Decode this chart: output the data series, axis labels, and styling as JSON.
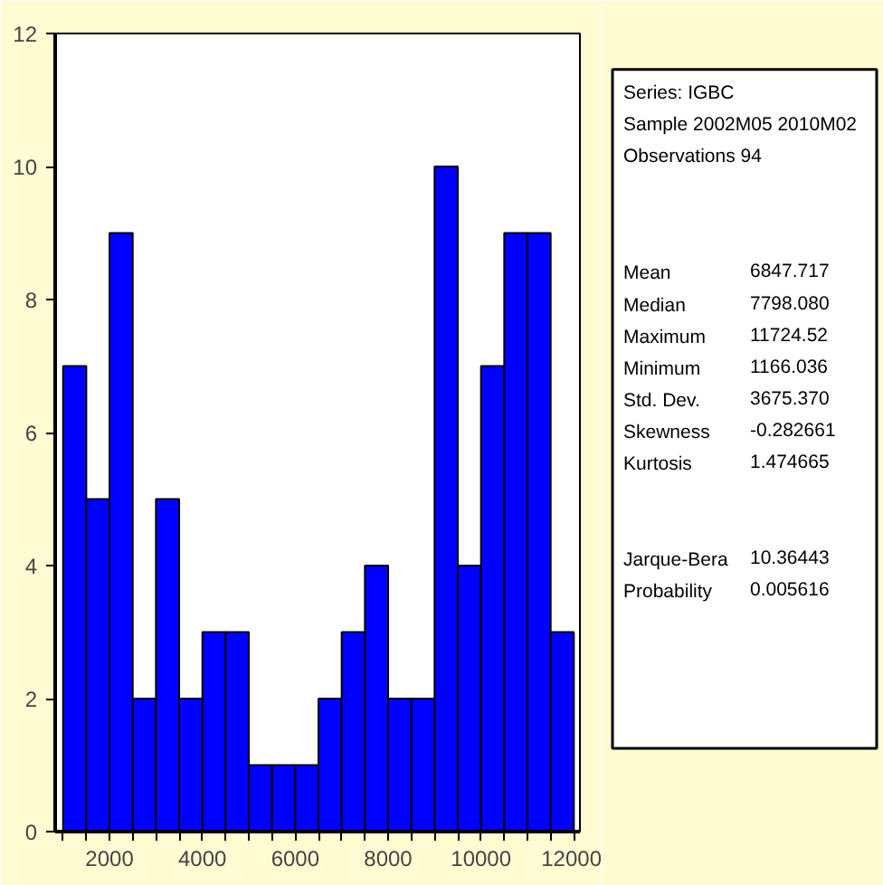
{
  "chart_data": [
    {
      "type": "histogram",
      "bins": [
        1000,
        1500,
        2000,
        2500,
        3000,
        3500,
        4000,
        4500,
        5000,
        5500,
        6000,
        6500,
        7000,
        7500,
        8000,
        8500,
        9000,
        9500,
        10000,
        10500,
        11000,
        11500,
        12000
      ],
      "values": [
        7,
        5,
        9,
        2,
        5,
        2,
        3,
        3,
        1,
        1,
        1,
        2,
        3,
        4,
        2,
        2,
        10,
        4,
        7,
        9,
        9,
        3
      ],
      "color": "#0000ff",
      "xlim": [
        830,
        12130
      ],
      "ylim": [
        0,
        12
      ],
      "xticks": [
        {
          "value": 1000,
          "label": null
        },
        {
          "value": 1500,
          "label": null
        },
        2000,
        {
          "value": 2500,
          "label": null
        },
        {
          "value": 3000,
          "label": null
        },
        {
          "value": 3500,
          "label": null
        },
        4000,
        {
          "value": 4500,
          "label": null
        },
        {
          "value": 5000,
          "label": null
        },
        {
          "value": 5500,
          "label": null
        },
        6000,
        {
          "value": 6500,
          "label": null
        },
        {
          "value": 7000,
          "label": null
        },
        {
          "value": 7500,
          "label": null
        },
        8000,
        {
          "value": 8500,
          "label": null
        },
        {
          "value": 9000,
          "label": null
        },
        {
          "value": 9500,
          "label": null
        },
        10000,
        {
          "value": 10500,
          "label": null
        },
        {
          "value": 11000,
          "label": null
        },
        {
          "value": 11500,
          "label": null
        },
        12000
      ],
      "yticks": [
        0,
        2,
        4,
        6,
        8,
        10,
        12
      ],
      "grid": false
    },
    {
      "type": "other",
      "annotations": [
        "Series: IGBC",
        "Sample 2002M05 2010M02",
        "Observations 94",
        "Mean",
        "6847.717",
        "Median",
        "7798.080",
        "Maximum",
        "11724.52",
        "Minimum",
        "1166.036",
        "Std. Dev.",
        "3675.370",
        "Skewness",
        "-0.282661",
        "Kurtosis",
        "1.474665",
        "Jarque-Bera",
        "10.36443",
        "Probability",
        "0.005616"
      ]
    }
  ]
}
